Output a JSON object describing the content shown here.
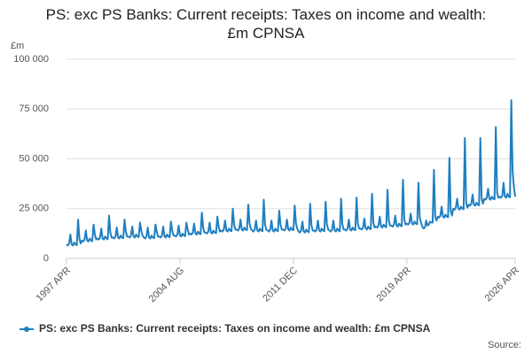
{
  "chart_data": {
    "type": "line",
    "title": "PS: exc PS Banks: Current receipts: Taxes on income and wealth: £m CPNSA",
    "y_label": "£m",
    "source": "Source:",
    "categories": [
      "1997 APR",
      null,
      null,
      null,
      null,
      null,
      null,
      null,
      null,
      null,
      null,
      null,
      null,
      null,
      null,
      null,
      null,
      null,
      null,
      null,
      null,
      null,
      null,
      null,
      null,
      null,
      null,
      null,
      null,
      null,
      null,
      null,
      null,
      null,
      null,
      null,
      null,
      null,
      null,
      null,
      null,
      null,
      null,
      null,
      null,
      null,
      null,
      null,
      null,
      null,
      null,
      null,
      null,
      null,
      null,
      null,
      null,
      null,
      null,
      null,
      null,
      null,
      null,
      null,
      null,
      null,
      null,
      null,
      null,
      null,
      null,
      null,
      null,
      null,
      null,
      null,
      null,
      null,
      null,
      null,
      null,
      null,
      null,
      null,
      null,
      null,
      null,
      null,
      "2004 AUG",
      null,
      null,
      null,
      null,
      null,
      null,
      null,
      null,
      null,
      null,
      null,
      null,
      null,
      null,
      null,
      null,
      null,
      null,
      null,
      null,
      null,
      null,
      null,
      null,
      null,
      null,
      null,
      null,
      null,
      null,
      null,
      null,
      null,
      null,
      null,
      null,
      null,
      null,
      null,
      null,
      null,
      null,
      null,
      null,
      null,
      null,
      null,
      null,
      null,
      null,
      null,
      null,
      null,
      null,
      null,
      null,
      null,
      null,
      null,
      null,
      null,
      null,
      null,
      null,
      null,
      null,
      null,
      null,
      null,
      null,
      null,
      null,
      null,
      null,
      null,
      null,
      null,
      null,
      null,
      null,
      null,
      null,
      null,
      null,
      null,
      null,
      null,
      "2011 DEC",
      null,
      null,
      null,
      null,
      null,
      null,
      null,
      null,
      null,
      null,
      null,
      null,
      null,
      null,
      null,
      null,
      null,
      null,
      null,
      null,
      null,
      null,
      null,
      null,
      null,
      null,
      null,
      null,
      null,
      null,
      null,
      null,
      null,
      null,
      null,
      null,
      null,
      null,
      null,
      null,
      null,
      null,
      null,
      null,
      null,
      null,
      null,
      null,
      null,
      null,
      null,
      null,
      null,
      null,
      null,
      null,
      null,
      null,
      null,
      null,
      null,
      null,
      null,
      null,
      null,
      null,
      null,
      null,
      null,
      null,
      null,
      null,
      null,
      null,
      null,
      null,
      null,
      null,
      null,
      null,
      null,
      null,
      null,
      null,
      null,
      null,
      null,
      "2019 APR",
      null,
      null,
      null,
      null,
      null,
      null,
      null,
      null,
      null,
      null,
      null,
      null,
      null,
      null,
      null,
      null,
      null,
      null,
      null,
      null,
      null,
      null,
      null,
      null,
      null,
      null,
      null,
      null,
      null,
      null,
      null,
      null,
      null,
      null,
      null,
      null,
      null,
      null,
      null,
      null,
      null,
      null,
      null,
      null,
      null,
      null,
      null,
      null,
      null,
      null,
      null,
      null,
      null,
      null,
      null,
      null,
      null,
      null,
      null,
      null,
      null,
      null,
      null,
      null,
      null,
      null,
      null,
      null,
      null,
      null,
      null,
      null,
      null,
      null,
      null,
      null,
      null,
      null,
      null,
      null,
      null,
      null,
      null,
      "2026 APR"
    ],
    "series": [
      {
        "name": "PS: exc PS Banks: Current receipts: Taxes on income and wealth: £m CPNSA",
        "color": "#1f7fc1",
        "values": [
          7000,
          6500,
          7500,
          12000,
          7000,
          6500,
          8000,
          7000,
          6700,
          19500,
          10000,
          7500,
          9000,
          8500,
          9500,
          14000,
          9000,
          8500,
          10000,
          9000,
          8700,
          17000,
          12000,
          9500,
          10000,
          9500,
          10500,
          15000,
          10000,
          9500,
          11000,
          10000,
          9700,
          21500,
          13000,
          10500,
          10500,
          10000,
          11000,
          15500,
          10500,
          10000,
          11500,
          10500,
          10200,
          19500,
          13500,
          11000,
          11000,
          10500,
          11500,
          16000,
          11000,
          10500,
          12000,
          11000,
          10700,
          18000,
          14000,
          11500,
          10500,
          10000,
          11000,
          15500,
          10500,
          10000,
          11500,
          10500,
          10200,
          17000,
          13500,
          11000,
          11000,
          10500,
          11500,
          16000,
          11000,
          10500,
          12000,
          11000,
          10700,
          18500,
          14000,
          11500,
          11500,
          11000,
          12000,
          16500,
          11500,
          11000,
          12500,
          11500,
          11200,
          18000,
          14500,
          12000,
          12500,
          12000,
          13000,
          17500,
          12500,
          12000,
          13500,
          12500,
          12200,
          23000,
          15500,
          13000,
          13000,
          12500,
          13500,
          18000,
          13000,
          12500,
          14000,
          13000,
          12700,
          21000,
          16000,
          13500,
          14000,
          13500,
          14500,
          19000,
          14000,
          13500,
          15000,
          14000,
          13700,
          25000,
          17000,
          14500,
          14500,
          14000,
          15000,
          19500,
          14500,
          14000,
          15500,
          14500,
          14200,
          27000,
          17500,
          15000,
          14000,
          13500,
          14500,
          19000,
          14000,
          13500,
          15000,
          14000,
          13700,
          29500,
          17000,
          14500,
          14000,
          13500,
          14500,
          19000,
          14000,
          13500,
          15000,
          14000,
          13700,
          24000,
          17000,
          14500,
          14500,
          14000,
          15000,
          19500,
          14500,
          14000,
          15500,
          14500,
          14200,
          26500,
          17500,
          15000,
          13500,
          13000,
          14000,
          18500,
          13500,
          13000,
          14500,
          13500,
          13200,
          27500,
          16500,
          14000,
          14000,
          13500,
          14500,
          19000,
          14000,
          13500,
          15000,
          14000,
          13700,
          28500,
          17000,
          14500,
          14000,
          13500,
          14500,
          19000,
          14000,
          13500,
          15000,
          14000,
          13700,
          30000,
          17000,
          14500,
          14500,
          14000,
          15000,
          19500,
          14500,
          14000,
          15500,
          14500,
          14200,
          30500,
          17500,
          15000,
          15000,
          14500,
          15500,
          20000,
          15000,
          14500,
          16000,
          15000,
          14700,
          32500,
          18000,
          15500,
          16000,
          15500,
          16500,
          21000,
          16000,
          15500,
          17000,
          16000,
          15700,
          34500,
          19000,
          16500,
          16500,
          16000,
          17000,
          21500,
          16500,
          16000,
          17500,
          16500,
          16200,
          39500,
          19500,
          17000,
          17500,
          17000,
          18000,
          22500,
          17500,
          17000,
          18500,
          17500,
          17200,
          38000,
          20500,
          18000,
          16000,
          15000,
          15500,
          19000,
          16500,
          17000,
          18500,
          18000,
          18000,
          44500,
          21000,
          19000,
          21000,
          20500,
          21500,
          26000,
          21000,
          20500,
          22000,
          21000,
          20700,
          50500,
          24000,
          21500,
          25000,
          24500,
          25500,
          30000,
          25000,
          24500,
          26000,
          25000,
          24700,
          60500,
          28000,
          25500,
          27000,
          26500,
          27500,
          32000,
          27000,
          26500,
          28000,
          27000,
          26700,
          60500,
          30000,
          27500,
          30000,
          29500,
          30500,
          35000,
          30000,
          29500,
          31000,
          30000,
          29700,
          66000,
          33000,
          30500,
          31000,
          30500,
          31500,
          38000,
          31000,
          30500,
          32500,
          31000,
          30700,
          79500,
          44000,
          36000,
          31000
        ]
      }
    ],
    "ylim": [
      0,
      100000
    ],
    "yticks": [
      0,
      {
        "value": 25000,
        "label": "25 000"
      },
      {
        "value": 50000,
        "label": "50 000"
      },
      {
        "value": 75000,
        "label": "75 000"
      },
      {
        "value": 100000,
        "label": "100 000"
      }
    ],
    "grid": true
  }
}
